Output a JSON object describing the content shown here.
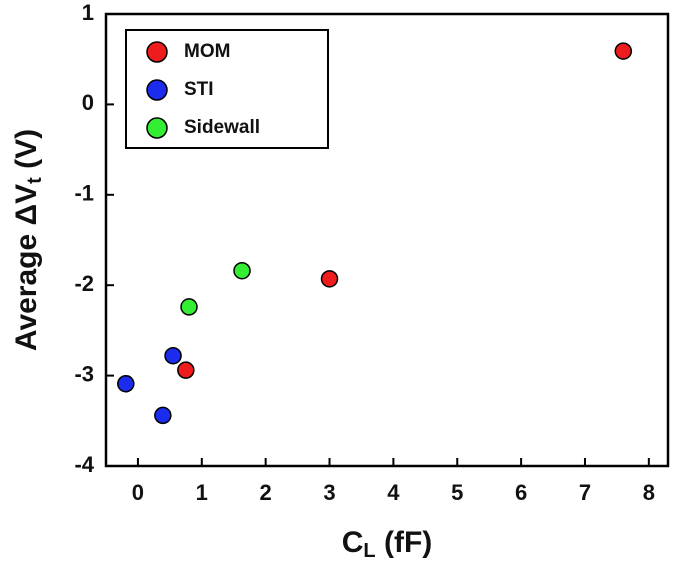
{
  "chart_data": {
    "type": "scatter",
    "xlabel": {
      "main": "C",
      "sub": "L",
      "unit": "(fF)"
    },
    "ylabel": {
      "main": "Average ΔV",
      "sub": "t",
      "unit": "(V)"
    },
    "xlim": [
      -0.5,
      8.3
    ],
    "ylim": [
      -4,
      1
    ],
    "xticks": [
      0,
      1,
      2,
      3,
      4,
      5,
      6,
      7,
      8
    ],
    "yticks": [
      -4,
      -3,
      -2,
      -1,
      0,
      1
    ],
    "legend": "top-left",
    "series": [
      {
        "name": "MOM",
        "color": "#ee1c1c",
        "x": [
          7.6,
          3.0,
          0.75
        ],
        "values": [
          0.59,
          -1.93,
          -2.94
        ]
      },
      {
        "name": "STI",
        "color": "#1c2cee",
        "x": [
          -0.19,
          0.39,
          0.55
        ],
        "values": [
          -3.09,
          -3.44,
          -2.78
        ]
      },
      {
        "name": "Sidewall",
        "color": "#33ee33",
        "x": [
          0.8,
          1.63
        ],
        "values": [
          -2.24,
          -1.84
        ]
      }
    ]
  }
}
